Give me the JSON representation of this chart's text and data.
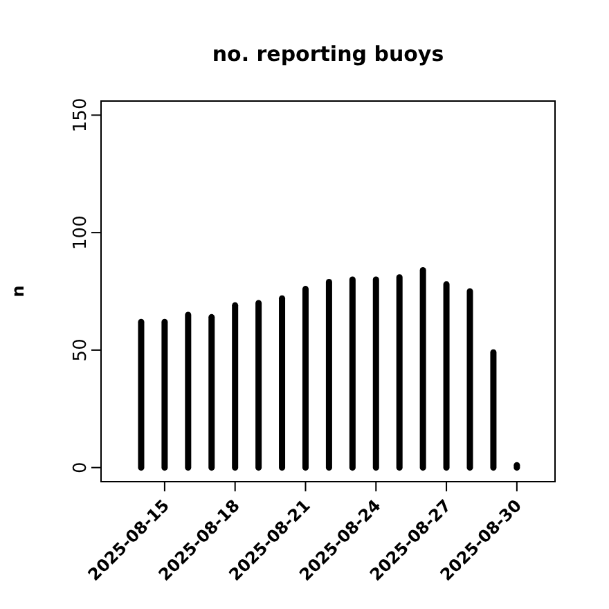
{
  "chart_data": {
    "type": "bar",
    "title": "no. reporting buoys",
    "ylabel": "n",
    "x": [
      "2025-08-14",
      "2025-08-15",
      "2025-08-16",
      "2025-08-17",
      "2025-08-18",
      "2025-08-19",
      "2025-08-20",
      "2025-08-21",
      "2025-08-22",
      "2025-08-23",
      "2025-08-24",
      "2025-08-25",
      "2025-08-26",
      "2025-08-27",
      "2025-08-28",
      "2025-08-29",
      "2025-08-30"
    ],
    "values": [
      62,
      62,
      65,
      64,
      69,
      70,
      72,
      76,
      79,
      80,
      80,
      81,
      84,
      78,
      75,
      49,
      1
    ],
    "color": "#000000",
    "xlim": [
      "2025-08-12T07:00",
      "2025-08-31T15:00"
    ],
    "xticks": [
      {
        "value": "2025-08-15",
        "label": "2025-08-15"
      },
      {
        "value": "2025-08-18",
        "label": "2025-08-18"
      },
      {
        "value": "2025-08-21",
        "label": "2025-08-21"
      },
      {
        "value": "2025-08-24",
        "label": "2025-08-24"
      },
      {
        "value": "2025-08-27",
        "label": "2025-08-27"
      },
      {
        "value": "2025-08-30",
        "label": "2025-08-30"
      }
    ],
    "ylim": [
      -6,
      156
    ],
    "yticks": [
      0,
      50,
      100,
      150
    ],
    "grid": false
  }
}
